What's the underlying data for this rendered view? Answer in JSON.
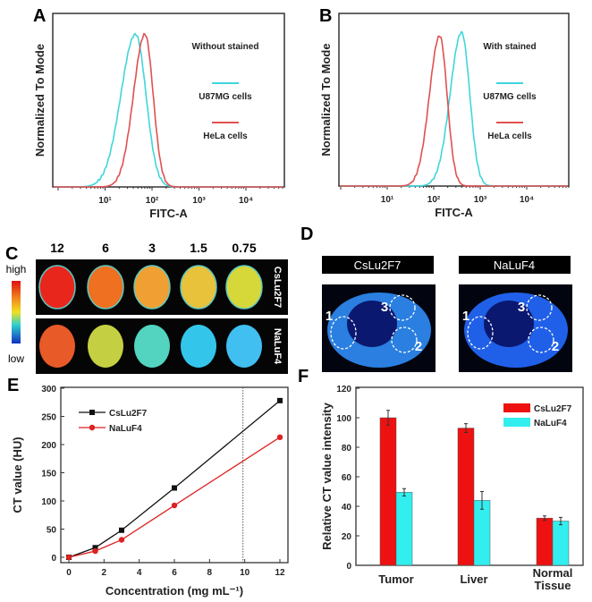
{
  "panels": {
    "a": "A",
    "b": "B",
    "c": "C",
    "d": "D",
    "e": "E",
    "f": "F"
  },
  "colors": {
    "cyan": "#3fd6dc",
    "red": "#e05050",
    "black": "#111111",
    "bar_red": "#ee1111",
    "bar_cyan": "#33eeee",
    "line_red": "#dd2222"
  },
  "chart_data": [
    {
      "id": "A",
      "type": "line",
      "title": "Without stained",
      "xlabel": "FITC-A",
      "ylabel": "Normalized To Mode",
      "xscale": "log",
      "xticks": [
        "10¹",
        "10²",
        "10³",
        "10⁴"
      ],
      "series": [
        {
          "name": "U87MG cells",
          "color": "#3fd6dc",
          "peak_log10": 1.65,
          "spread_log10": 0.28,
          "peak": 88
        },
        {
          "name": "HeLa cells",
          "color": "#e05050",
          "peak_log10": 1.85,
          "spread_log10": 0.22,
          "peak": 88
        }
      ]
    },
    {
      "id": "B",
      "type": "line",
      "title": "With stained",
      "xlabel": "FITC-A",
      "ylabel": "Normalized To Mode",
      "xscale": "log",
      "xticks": [
        "10¹",
        "10²",
        "10³",
        "10⁴"
      ],
      "series": [
        {
          "name": "U87MG cells",
          "color": "#3fd6dc",
          "peak_log10": 2.6,
          "spread_log10": 0.22,
          "peak": 89
        },
        {
          "name": "HeLa cells",
          "color": "#e05050",
          "peak_log10": 2.13,
          "spread_log10": 0.2,
          "peak": 87
        }
      ]
    },
    {
      "id": "E",
      "type": "line",
      "xlabel": "Concentration (mg mL⁻¹)",
      "ylabel": "CT value (HU)",
      "xlim": [
        0,
        12
      ],
      "ylim": [
        0,
        300
      ],
      "xticks": [
        0,
        2,
        4,
        6,
        8,
        10,
        12
      ],
      "yticks": [
        0,
        50,
        100,
        150,
        200,
        250,
        300
      ],
      "reference_line_x": 9.9,
      "legend": "top-left",
      "x": [
        0,
        1.5,
        3,
        6,
        12
      ],
      "series": [
        {
          "name": "CsLu2F7",
          "color": "#111111",
          "marker": "square",
          "values": [
            0,
            17,
            48,
            123,
            278
          ]
        },
        {
          "name": "NaLuF4",
          "color": "#dd2222",
          "marker": "circle",
          "values": [
            0,
            11,
            31,
            92,
            213
          ]
        }
      ]
    },
    {
      "id": "F",
      "type": "bar",
      "ylabel": "Relative CT value intensity",
      "ylim": [
        0,
        120
      ],
      "yticks": [
        0,
        20,
        40,
        60,
        80,
        100,
        120
      ],
      "categories": [
        "Tumor",
        "Liver",
        "Normal\nTissue"
      ],
      "legend": "top-right",
      "series": [
        {
          "name": "CsLu2F7",
          "color": "#ee1111",
          "values": [
            100,
            93,
            32
          ],
          "errors": [
            5,
            3,
            1.5
          ]
        },
        {
          "name": "NaLuF4",
          "color": "#33eeee",
          "values": [
            49.5,
            44,
            30
          ],
          "errors": [
            2.5,
            6,
            2.5
          ]
        }
      ]
    }
  ],
  "panel_c": {
    "concentrations": [
      "12",
      "6",
      "3",
      "1.5",
      "0.75"
    ],
    "scale_high": "high",
    "scale_low": "low",
    "rows": [
      {
        "label": "CsLu2F7",
        "colors": [
          "#e8261c",
          "#ee7020",
          "#f0a032",
          "#e8c23a",
          "#d6d83a"
        ]
      },
      {
        "label": "NaLuF4",
        "colors": [
          "#e85a28",
          "#c4d042",
          "#52d4c0",
          "#34c6ea",
          "#40bff0"
        ]
      }
    ]
  },
  "panel_d": {
    "images": [
      {
        "label": "CsLu2F7",
        "regions": [
          "1",
          "2",
          "3"
        ]
      },
      {
        "label": "NaLuF4",
        "regions": [
          "1",
          "2",
          "3"
        ]
      }
    ]
  }
}
